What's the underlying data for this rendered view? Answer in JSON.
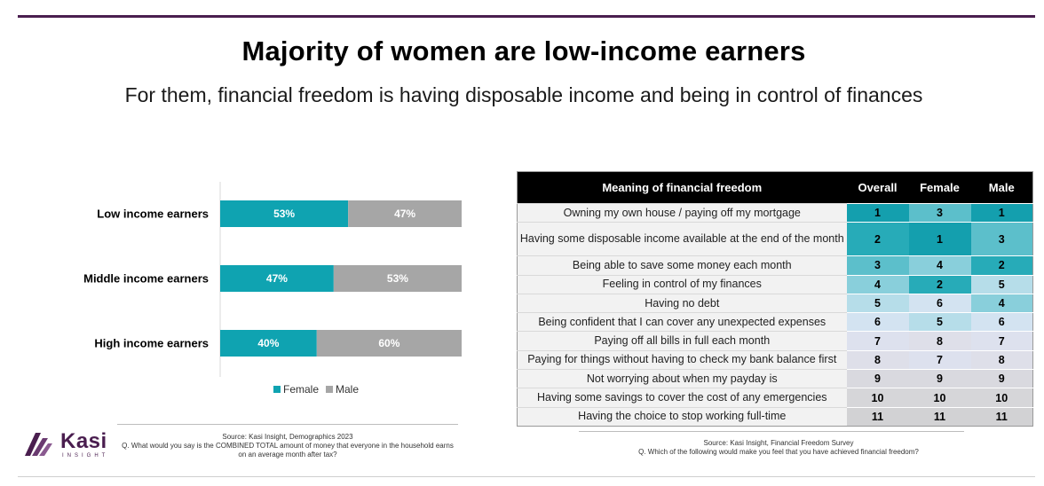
{
  "title": "Majority of women are low-income earners",
  "subtitle": "For them, financial freedom is having disposable income and being in control of finances",
  "colors": {
    "female": "#0fa3b1",
    "male": "#a6a6a6",
    "brand": "#4a1e4f",
    "header": "#000000"
  },
  "chart_data": [
    {
      "type": "bar",
      "orientation": "horizontal",
      "stacked": true,
      "percent": true,
      "categories": [
        "Low income earners",
        "Middle income earners",
        "High income earners"
      ],
      "series": [
        {
          "name": "Female",
          "values": [
            53,
            47,
            40
          ],
          "labels": [
            "53%",
            "47%",
            "40%"
          ]
        },
        {
          "name": "Male",
          "values": [
            47,
            53,
            60
          ],
          "labels": [
            "47%",
            "53%",
            "60%"
          ]
        }
      ],
      "xlim": [
        0,
        100
      ],
      "grid": false,
      "legend": "bottom"
    },
    {
      "type": "table",
      "columns": [
        "Meaning of financial freedom",
        "Overall",
        "Female",
        "Male"
      ],
      "rows": [
        [
          "Owning my own house / paying off my mortgage",
          1,
          3,
          1
        ],
        [
          "Having some disposable income available at the end of the month",
          2,
          1,
          3
        ],
        [
          "Being able to save some money each month",
          3,
          4,
          2
        ],
        [
          "Feeling in control of my finances",
          4,
          2,
          5
        ],
        [
          "Having no debt",
          5,
          6,
          4
        ],
        [
          "Being confident that I can cover any unexpected expenses",
          6,
          5,
          6
        ],
        [
          "Paying off all bills in full each month",
          7,
          8,
          7
        ],
        [
          "Paying for things without having to check my bank balance first",
          8,
          7,
          8
        ],
        [
          "Not worrying about when my payday is",
          9,
          9,
          9
        ],
        [
          "Having some savings to cover the cost of any emergencies",
          10,
          10,
          10
        ],
        [
          "Having the choice to stop working full-time",
          11,
          11,
          11
        ]
      ]
    }
  ],
  "rank_colors": {
    "1": "#149fae",
    "2": "#27abb8",
    "3": "#5cbfcb",
    "4": "#89cfdb",
    "5": "#b6dde9",
    "6": "#d3e3f1",
    "7": "#dde1ee",
    "8": "#dedfe9",
    "9": "#d9d9df",
    "10": "#d6d6d9",
    "11": "#d2d2d4"
  },
  "source_left": {
    "line1": "Source: Kasi Insight, Demographics 2023",
    "line2": "Q. What would you say is the COMBINED TOTAL amount of money that everyone in the household earns on an average month after tax?"
  },
  "source_right": {
    "line1": "Source: Kasi Insight, Financial Freedom Survey",
    "line2": "Q. Which of the following would make you feel that you have achieved financial freedom?"
  },
  "logo": {
    "name": "Kasi",
    "sub": "INSIGHT"
  }
}
